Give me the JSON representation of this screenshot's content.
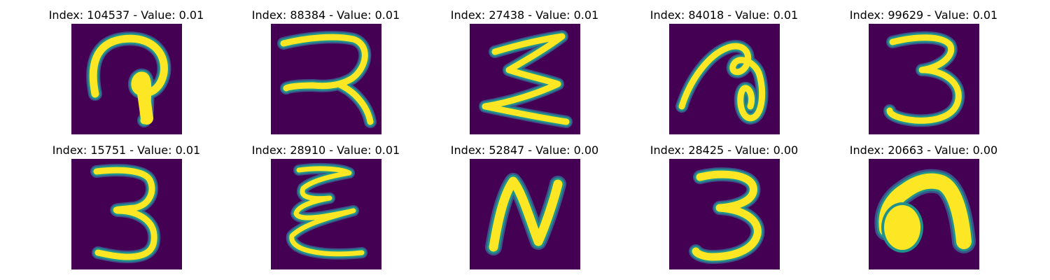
{
  "colors": {
    "background": "#440154",
    "stroke_core": "#fde725",
    "stroke_mid": "#5ec962",
    "stroke_edge": "#21918c",
    "stroke_outer": "#3b528b"
  },
  "panels": [
    {
      "title": "Index: 104537 - Value: 0.01",
      "glyph": "hook-loop"
    },
    {
      "title": "Index: 88384 - Value: 0.01",
      "glyph": "r-like"
    },
    {
      "title": "Index: 27438 - Value: 0.01",
      "glyph": "sigma"
    },
    {
      "title": "Index: 84018 - Value: 0.01",
      "glyph": "loop-curve"
    },
    {
      "title": "Index: 99629 - Value: 0.01",
      "glyph": "three"
    },
    {
      "title": "Index: 15751 - Value: 0.01",
      "glyph": "three-tall"
    },
    {
      "title": "Index: 28910 - Value: 0.01",
      "glyph": "epsilon"
    },
    {
      "title": "Index: 52847 - Value: 0.00",
      "glyph": "n-shape"
    },
    {
      "title": "Index: 28425 - Value: 0.00",
      "glyph": "three-small"
    },
    {
      "title": "Index: 20663 - Value: 0.00",
      "glyph": "blob-arch"
    }
  ]
}
